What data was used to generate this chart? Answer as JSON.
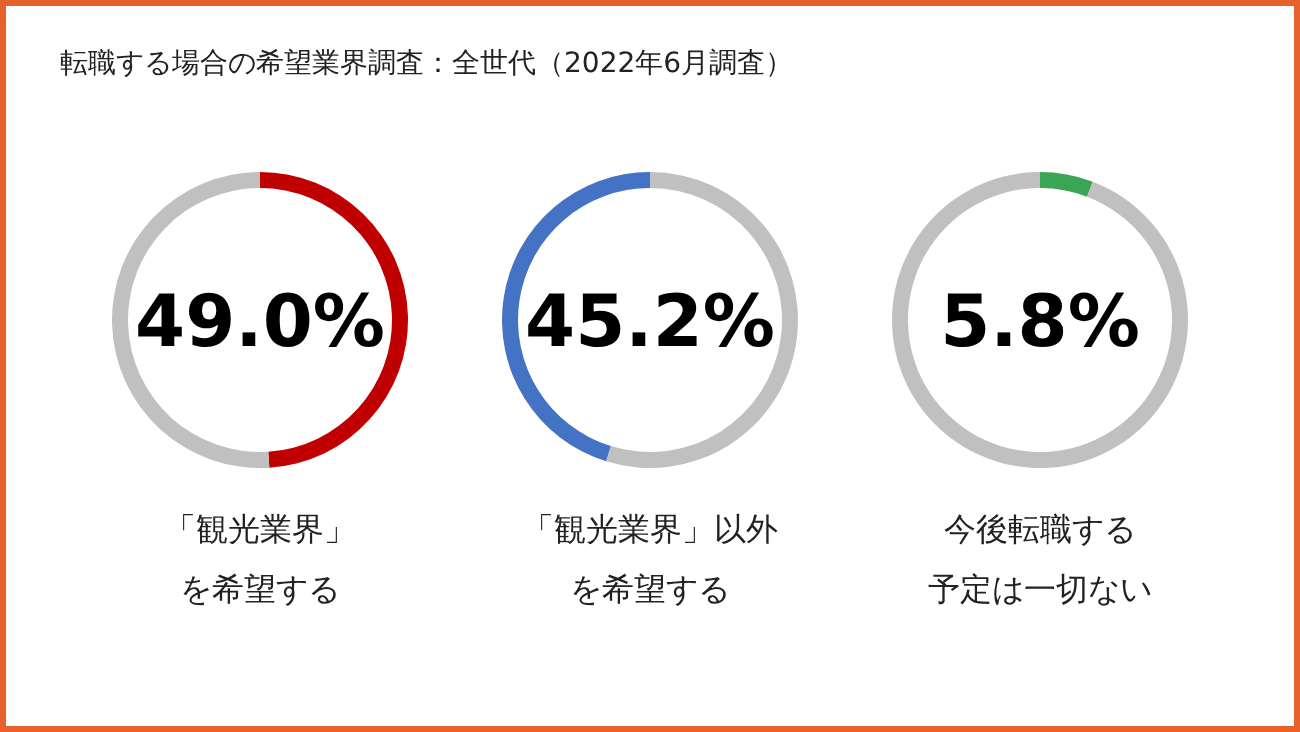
{
  "chart_data": [
    {
      "type": "donut",
      "title": "転職する場合の希望業界調査：全世代（2022年6月調査）",
      "categories": [
        null,
        null
      ],
      "values": [
        49.0,
        51.0
      ],
      "colors": [
        "#c00000",
        "#c0c0c0"
      ],
      "annotations": [
        "49.0%",
        "「観光業界」",
        "を希望する"
      ]
    },
    {
      "type": "donut",
      "categories": [
        null,
        null
      ],
      "values": [
        54.8,
        45.2
      ],
      "colors": [
        "#c0c0c0",
        "#4472c4"
      ],
      "annotations": [
        "45.2%",
        "「観光業界」以外",
        "を希望する"
      ]
    },
    {
      "type": "donut",
      "categories": [
        null,
        null
      ],
      "values": [
        5.8,
        94.2
      ],
      "colors": [
        "#3aa655",
        "#c0c0c0"
      ],
      "annotations": [
        "5.8%",
        "今後転職する",
        "予定は一切ない"
      ]
    }
  ]
}
